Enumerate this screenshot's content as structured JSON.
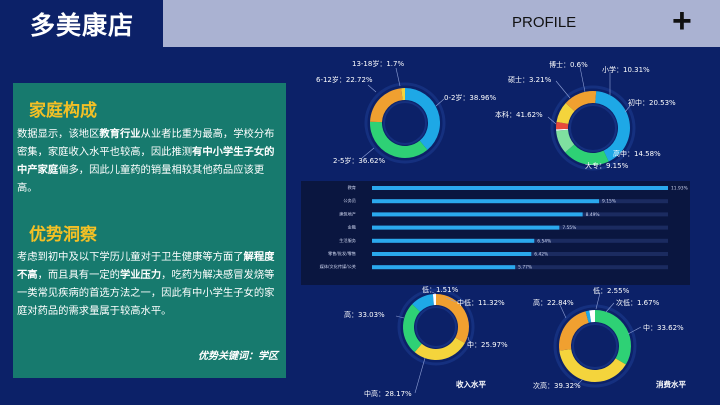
{
  "header": {
    "title": "多美康店",
    "profile_label": "PROFILE",
    "plus_symbol": "+"
  },
  "left": {
    "family": {
      "heading": "家庭构成",
      "body": [
        {
          "t": "数据显示，该地区",
          "b": false
        },
        {
          "t": "教育行业",
          "b": true
        },
        {
          "t": "从业者比重为最高，学校分布密集，家庭收入水平也较高，因此推测",
          "b": false
        },
        {
          "t": "有中小学生子女的中产家庭",
          "b": true
        },
        {
          "t": "偏多，因此儿童药的销量相较其他药品应该更高。",
          "b": false
        }
      ]
    },
    "advantage": {
      "heading": "优势洞察",
      "body": [
        {
          "t": "考虑到初中及以下学历儿童对于卫生健康等方面了",
          "b": false
        },
        {
          "t": "解程度不高",
          "b": true
        },
        {
          "t": "，而且具有一定的",
          "b": false
        },
        {
          "t": "学业压力",
          "b": true
        },
        {
          "t": "，吃药为解决感冒发烧等一类常见疾病的首选方法之一，因此有中小学生子女的家庭对药品的需求量属于较高水平。",
          "b": false
        }
      ],
      "keyword": "优势关键词：学区"
    }
  },
  "chart_data": [
    {
      "type": "pie",
      "labels": [
        "0-2岁",
        "2-5岁",
        "6-12岁",
        "13-18岁"
      ],
      "values": [
        38.96,
        36.62,
        22.72,
        1.7
      ],
      "display": [
        "0-2岁：38.96%",
        "2-5岁：36.62%",
        "6-12岁：22.72%",
        "13-18岁：1.7%"
      ],
      "colors": [
        "#1ea8e6",
        "#2ed175",
        "#f0a030",
        "#f4d43c"
      ]
    },
    {
      "type": "pie",
      "labels": [
        "本科",
        "初中",
        "小学",
        "博士",
        "硕士",
        "大专",
        "高中"
      ],
      "values": [
        41.62,
        20.53,
        10.31,
        0.6,
        3.21,
        9.15,
        14.58
      ],
      "display": [
        "本科：41.62%",
        "初中：20.53%",
        "小学：10.31%",
        "博士：0.6%",
        "硕士：3.21%",
        "大专：9.15%",
        "高中：14.58%"
      ],
      "colors": [
        "#1ea8e6",
        "#2ed175",
        "#7fe0a0",
        "#ffffff",
        "#e84a3c",
        "#f4d43c",
        "#f0a030"
      ]
    },
    {
      "type": "bar",
      "categories": [
        "教育",
        "公务员",
        "建筑地产",
        "金融",
        "生活服务",
        "零售/批发/零售",
        "媒体/文化传媒/公关"
      ],
      "values": [
        11.93,
        9.15,
        8.49,
        7.55,
        6.54,
        6.42,
        5.77
      ],
      "value_labels": [
        "11.93%",
        "9.15%",
        "8.49%",
        "7.55%",
        "6.54%",
        "6.42%",
        "5.77%"
      ],
      "xlim": [
        0,
        11.93
      ]
    },
    {
      "type": "pie",
      "title": "收入水平",
      "labels": [
        "高",
        "中高",
        "中",
        "中低",
        "低"
      ],
      "values": [
        33.03,
        28.17,
        25.97,
        11.32,
        1.51
      ],
      "display": [
        "高：33.03%",
        "中高：28.17%",
        "中：25.97%",
        "中低：11.32%",
        "低：1.51%"
      ],
      "colors": [
        "#f0a030",
        "#f4d43c",
        "#2ed175",
        "#1ea8e6",
        "#ffffff"
      ]
    },
    {
      "type": "pie",
      "title": "消费水平",
      "labels": [
        "中",
        "次高",
        "高",
        "次低",
        "低"
      ],
      "values": [
        33.62,
        39.32,
        22.84,
        1.67,
        2.55
      ],
      "display": [
        "中：33.62%",
        "次高：39.32%",
        "高：22.84%",
        "次低：1.67%",
        "低：2.55%"
      ],
      "colors": [
        "#2ed175",
        "#f4d43c",
        "#f0a030",
        "#1ea8e6",
        "#ffffff"
      ]
    }
  ]
}
